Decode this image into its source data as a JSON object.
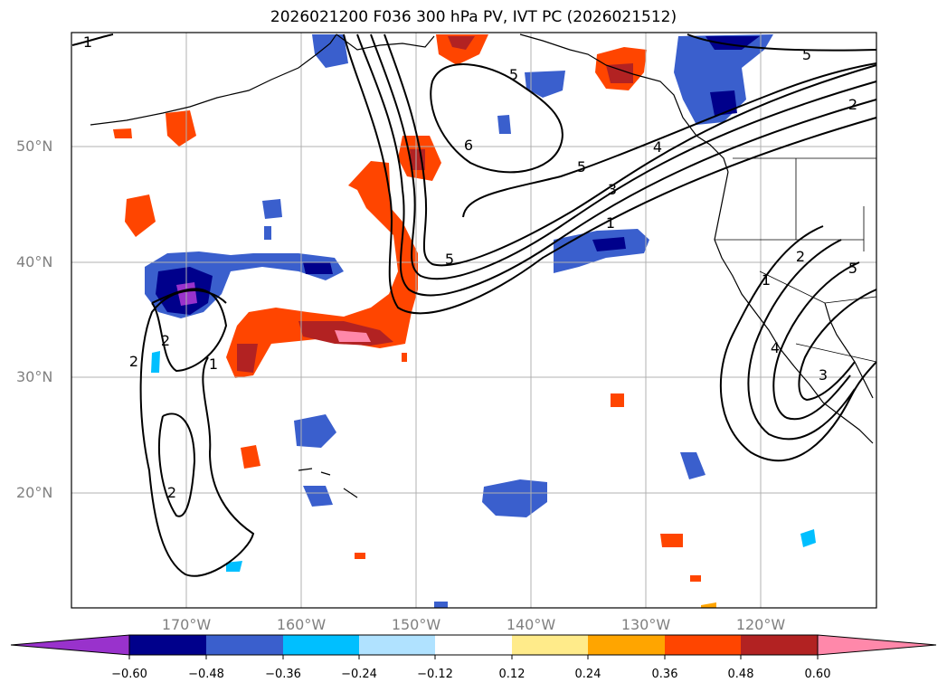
{
  "title": "2026021200 F036 300 hPa PV, IVT PC (2026021512)",
  "map": {
    "lon_range": [
      -180,
      -110
    ],
    "lat_range": [
      10,
      60
    ],
    "lat_labels": [
      {
        "lat": 50,
        "text": "50°N"
      },
      {
        "lat": 40,
        "text": "40°N"
      },
      {
        "lat": 30,
        "text": "30°N"
      },
      {
        "lat": 20,
        "text": "20°N"
      }
    ],
    "lon_labels": [
      {
        "lon": -170,
        "text": "170°W"
      },
      {
        "lon": -160,
        "text": "160°W"
      },
      {
        "lon": -150,
        "text": "150°W"
      },
      {
        "lon": -140,
        "text": "140°W"
      },
      {
        "lon": -130,
        "text": "130°W"
      },
      {
        "lon": -120,
        "text": "120°W"
      }
    ],
    "gridlines": true,
    "contour_labels": [
      "1",
      "2",
      "5",
      "5",
      "6",
      "5",
      "4",
      "3",
      "1",
      "2",
      "5",
      "4",
      "3",
      "5",
      "2",
      "1",
      "2",
      "2",
      "1"
    ]
  },
  "colorbar": {
    "ticks": [
      "−0.60",
      "−0.48",
      "−0.36",
      "−0.24",
      "−0.12",
      "0.12",
      "0.24",
      "0.36",
      "0.48",
      "0.60"
    ],
    "colors": [
      "#9932cc",
      "#00008b",
      "#3a5fcd",
      "#00bfff",
      "#b0e2ff",
      "#ffffff",
      "#ffeb8a",
      "#ffa500",
      "#ff4500",
      "#b22222",
      "#ff88aa"
    ],
    "extend": "both"
  }
}
